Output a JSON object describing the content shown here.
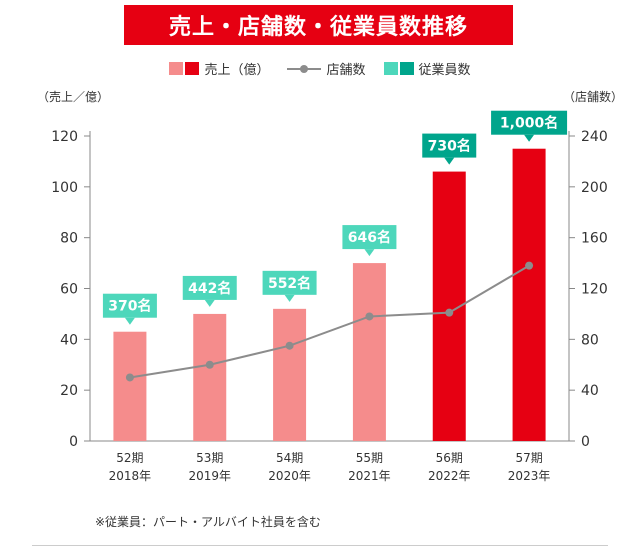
{
  "title": "売上・店舗数・従業員数推移",
  "legend": {
    "sales": "売上（億）",
    "stores": "店舗数",
    "employees": "従業員数"
  },
  "units": {
    "left": "（売上／億）",
    "right": "（店舗数）"
  },
  "footnote": "※従業員：パート・アルバイト社員を含む",
  "colors": {
    "title_bg": "#e60012",
    "bar_light": "#f58c8c",
    "bar_dark": "#e60012",
    "line": "#8c8c8c",
    "employee_label": "#4dd7bb",
    "employee_label_dark": "#00a58c"
  },
  "chart_data": {
    "type": "bar",
    "categories": [
      {
        "period": "52期",
        "year": "2018年"
      },
      {
        "period": "53期",
        "year": "2019年"
      },
      {
        "period": "54期",
        "year": "2020年"
      },
      {
        "period": "55期",
        "year": "2021年"
      },
      {
        "period": "56期",
        "year": "2022年"
      },
      {
        "period": "57期",
        "year": "2023年"
      }
    ],
    "series": [
      {
        "name": "売上（億）",
        "type": "bar",
        "axis": "left",
        "values": [
          43,
          50,
          52,
          70,
          106,
          115
        ]
      },
      {
        "name": "店舗数",
        "type": "line",
        "axis": "right",
        "values": [
          50,
          60,
          75,
          98,
          101,
          138
        ]
      },
      {
        "name": "従業員数",
        "type": "label",
        "values": [
          "370名",
          "442名",
          "552名",
          "646名",
          "730名",
          "1,000名"
        ]
      }
    ],
    "bar_highlight": [
      false,
      false,
      false,
      false,
      true,
      true
    ],
    "y_left": {
      "range": [
        0,
        120
      ],
      "ticks": [
        "0",
        "20",
        "40",
        "60",
        "80",
        "100",
        "120"
      ]
    },
    "y_right": {
      "range": [
        0,
        240
      ],
      "ticks": [
        "0",
        "40",
        "80",
        "120",
        "160",
        "200",
        "240"
      ]
    },
    "grid": false
  }
}
